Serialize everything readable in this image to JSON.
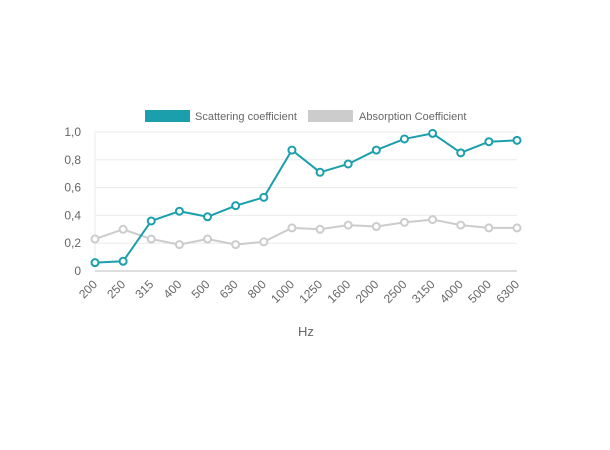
{
  "chart_data": {
    "type": "line",
    "xlabel": "Hz",
    "ylabel": "",
    "ylim": [
      0,
      1.0
    ],
    "yticks": [
      "0",
      "0,2",
      "0,4",
      "0,6",
      "0,8",
      "1,0"
    ],
    "ytick_values": [
      0,
      0.2,
      0.4,
      0.6,
      0.8,
      1.0
    ],
    "grid": true,
    "legend_position": "top-center",
    "categories": [
      "200",
      "250",
      "315",
      "400",
      "500",
      "630",
      "800",
      "1000",
      "1250",
      "1600",
      "2000",
      "2500",
      "3150",
      "4000",
      "5000",
      "6300"
    ],
    "series": [
      {
        "name": "Scattering coefficient",
        "color": "#1b9fac",
        "values": [
          0.06,
          0.07,
          0.36,
          0.43,
          0.39,
          0.47,
          0.53,
          0.87,
          0.71,
          0.77,
          0.87,
          0.95,
          0.99,
          0.85,
          0.93,
          0.94
        ]
      },
      {
        "name": "Absorption Coefficient",
        "color": "#cccccc",
        "values": [
          0.23,
          0.3,
          0.23,
          0.19,
          0.23,
          0.19,
          0.21,
          0.31,
          0.3,
          0.33,
          0.32,
          0.35,
          0.37,
          0.33,
          0.31,
          0.31
        ]
      }
    ]
  }
}
